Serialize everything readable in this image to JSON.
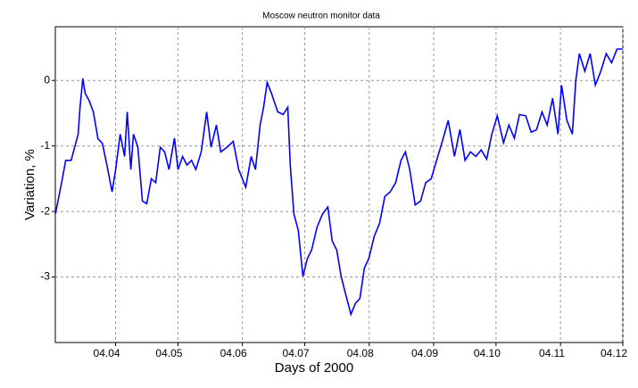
{
  "chart_data": {
    "type": "line",
    "title": "Moscow neutron monitor data",
    "xlabel": "Days of 2000",
    "ylabel": "Variation, %",
    "xlim": [
      66,
      339
    ],
    "ylim": [
      -4,
      0.82
    ],
    "xticks": [
      {
        "value": 95,
        "label": "04.04"
      },
      {
        "value": 125,
        "label": "04.05"
      },
      {
        "value": 156,
        "label": "04.06"
      },
      {
        "value": 186,
        "label": "04.07"
      },
      {
        "value": 217,
        "label": "04.08"
      },
      {
        "value": 248,
        "label": "04.09"
      },
      {
        "value": 278,
        "label": "04.10"
      },
      {
        "value": 309,
        "label": "04.11"
      },
      {
        "value": 339,
        "label": "04.12"
      }
    ],
    "yticks": [
      -3,
      -2,
      -1,
      0
    ],
    "grid": true,
    "series": [
      {
        "name": "Variation",
        "color": "#0000ff",
        "x": [
          66,
          67.3,
          69.4,
          71,
          73.6,
          75.3,
          77,
          77.9,
          79.2,
          80.4,
          82.2,
          84.3,
          86.5,
          88.6,
          90.8,
          93.3,
          95,
          97.2,
          99.3,
          100.6,
          102.3,
          103.6,
          105.7,
          107.9,
          110,
          112.2,
          114.3,
          116.5,
          118.6,
          120.7,
          123.3,
          125,
          127.2,
          129.3,
          131.5,
          133.6,
          136.2,
          138.8,
          140.9,
          143.5,
          145.6,
          148.6,
          151.6,
          154.2,
          157.6,
          160.2,
          162.3,
          164.5,
          166.2,
          167.9,
          170,
          173,
          175.6,
          177.8,
          179,
          180.8,
          182.9,
          185.1,
          187.2,
          189.3,
          191.9,
          194.5,
          197.1,
          199.2,
          201.4,
          203.5,
          205.7,
          208.2,
          210.4,
          212.5,
          214.7,
          216.8,
          219.4,
          222,
          224.5,
          227.1,
          229.7,
          232.3,
          234.4,
          236.5,
          239.1,
          241.7,
          244.2,
          246.8,
          249.4,
          252,
          255,
          258,
          260.6,
          263.1,
          265.7,
          268.3,
          270.9,
          273.5,
          276,
          278.6,
          281.6,
          284.2,
          286.8,
          289.3,
          292.3,
          294.9,
          297.5,
          300.1,
          302.6,
          305.2,
          307.8,
          309.5,
          312.1,
          314.7,
          316.4,
          318.1,
          320.7,
          323.3,
          325.8,
          328.4,
          331,
          333.6,
          336.2,
          338.8
        ],
        "values": [
          -2.04,
          -1.84,
          -1.5,
          -1.22,
          -1.22,
          -1.02,
          -0.82,
          -0.41,
          0.03,
          -0.2,
          -0.3,
          -0.48,
          -0.89,
          -0.96,
          -1.29,
          -1.7,
          -1.36,
          -0.82,
          -1.16,
          -0.48,
          -1.36,
          -0.82,
          -1.02,
          -1.84,
          -1.88,
          -1.5,
          -1.56,
          -1.02,
          -1.09,
          -1.36,
          -0.88,
          -1.36,
          -1.16,
          -1.29,
          -1.22,
          -1.36,
          -1.09,
          -0.48,
          -1.02,
          -0.68,
          -1.09,
          -1.02,
          -0.93,
          -1.36,
          -1.63,
          -1.16,
          -1.36,
          -0.68,
          -0.41,
          -0.03,
          -0.2,
          -0.48,
          -0.52,
          -0.41,
          -1.29,
          -2.04,
          -2.29,
          -2.99,
          -2.72,
          -2.59,
          -2.24,
          -2.04,
          -1.93,
          -2.45,
          -2.59,
          -2.99,
          -3.27,
          -3.57,
          -3.4,
          -3.33,
          -2.86,
          -2.72,
          -2.38,
          -2.18,
          -1.77,
          -1.7,
          -1.56,
          -1.22,
          -1.09,
          -1.36,
          -1.9,
          -1.84,
          -1.56,
          -1.5,
          -1.22,
          -0.95,
          -0.61,
          -1.16,
          -0.75,
          -1.22,
          -1.09,
          -1.16,
          -1.06,
          -1.2,
          -0.82,
          -0.54,
          -0.95,
          -0.68,
          -0.88,
          -0.52,
          -0.54,
          -0.79,
          -0.75,
          -0.48,
          -0.68,
          -0.27,
          -0.82,
          -0.07,
          -0.61,
          -0.82,
          0,
          0.41,
          0.14,
          0.41,
          -0.07,
          0.14,
          0.41,
          0.27,
          0.48,
          0.48
        ]
      }
    ]
  }
}
